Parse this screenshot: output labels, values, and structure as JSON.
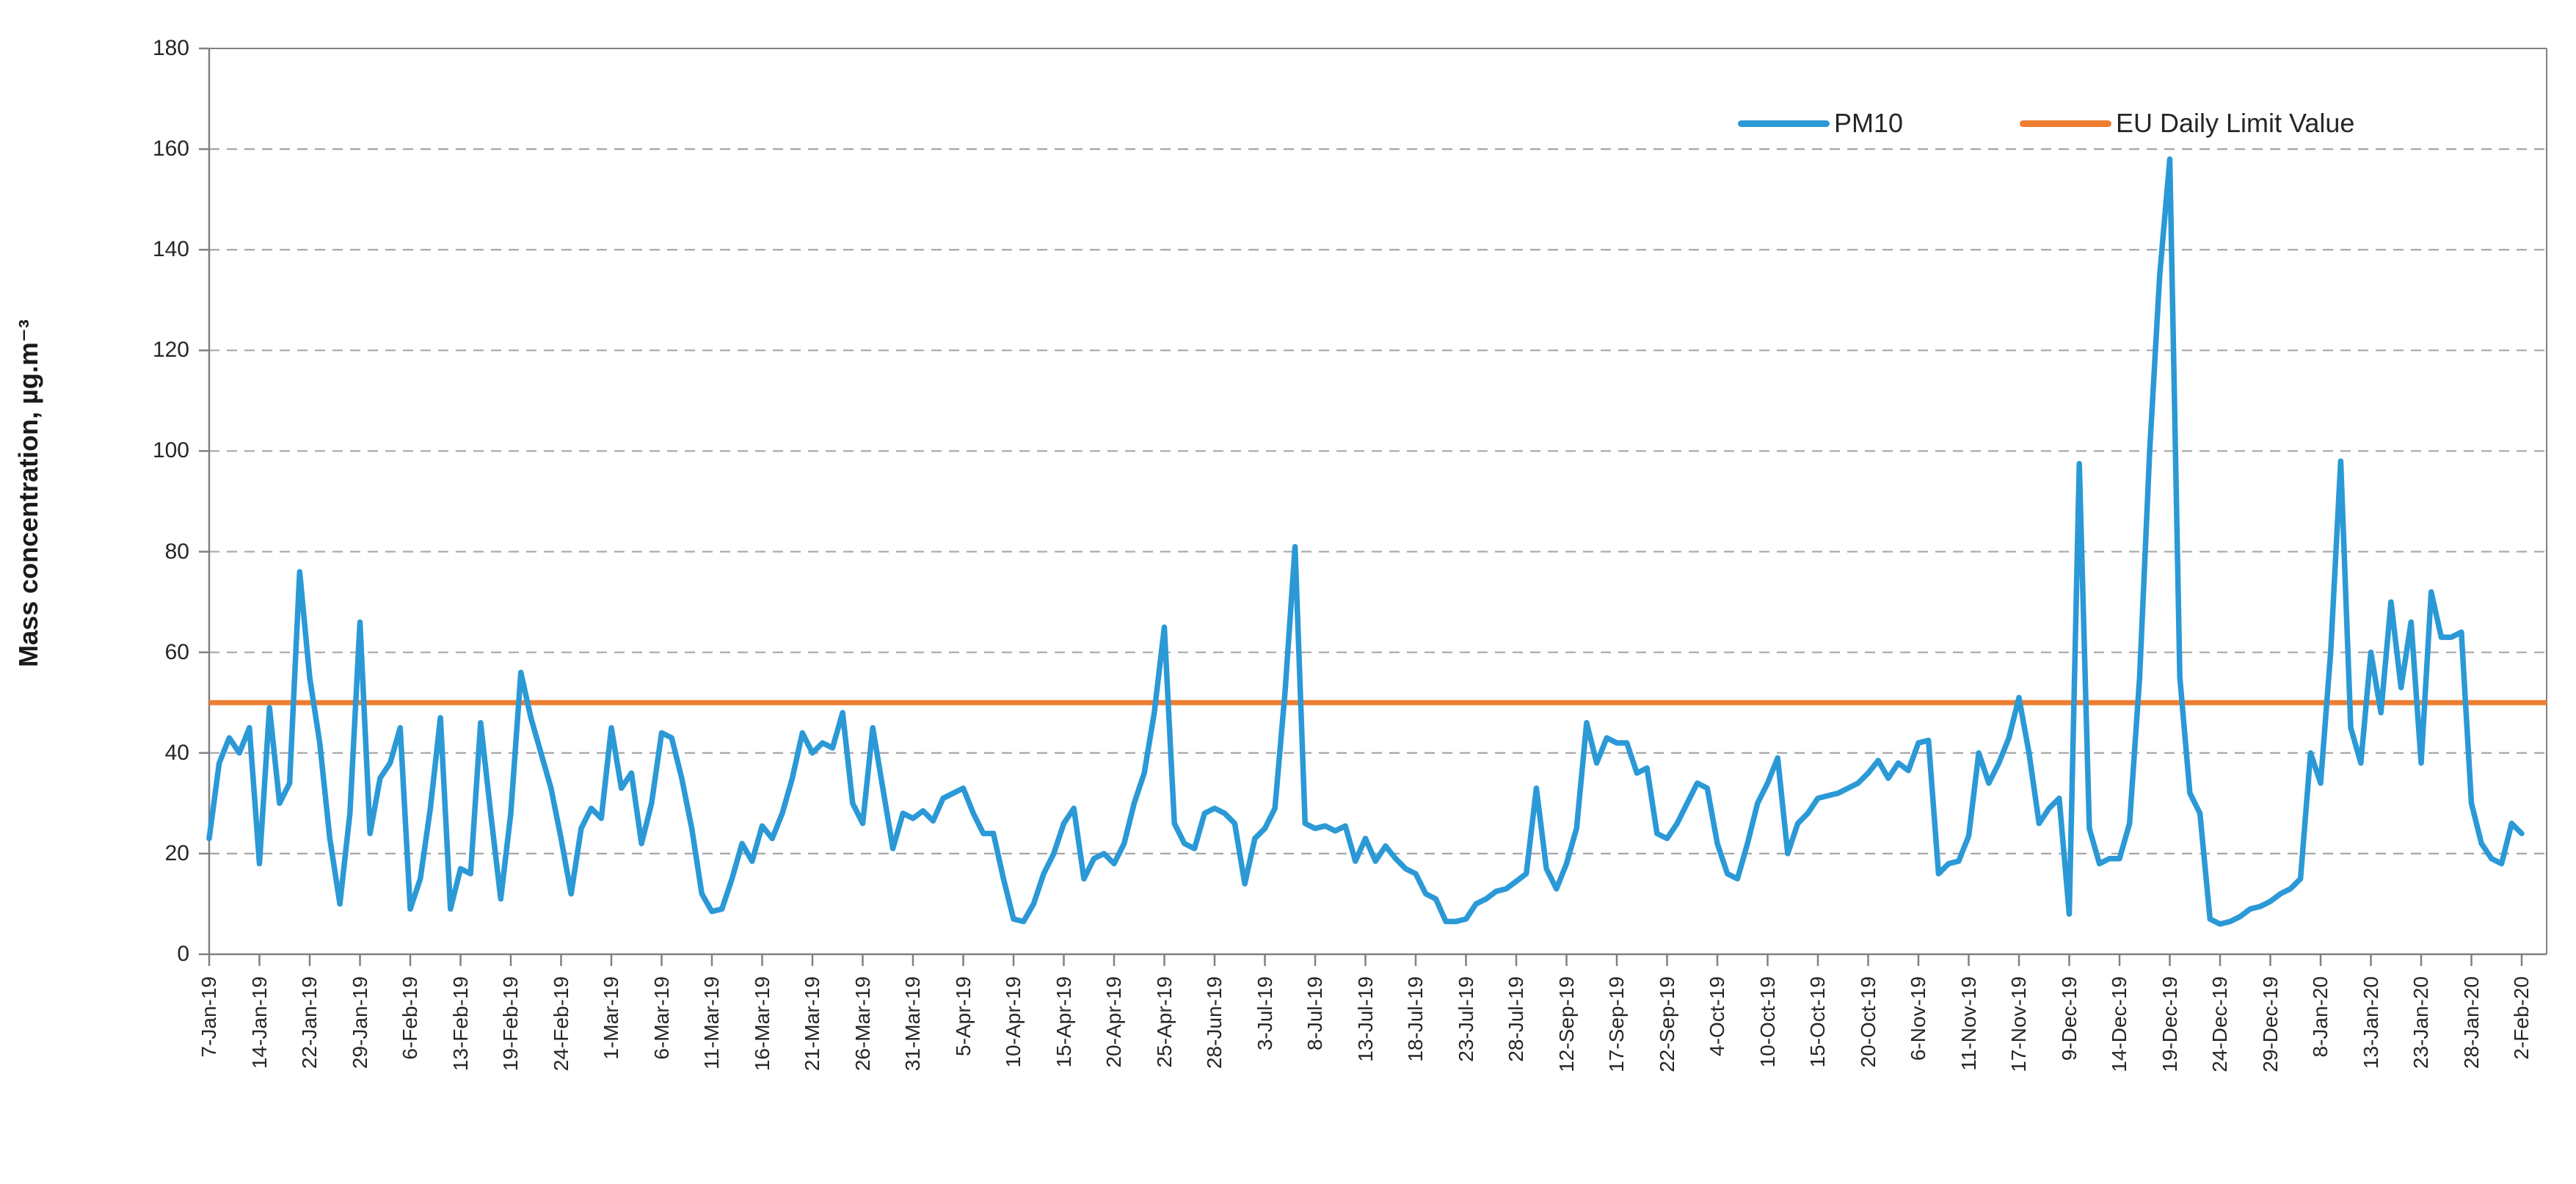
{
  "chart_data": {
    "type": "line",
    "title": "",
    "xlabel": "",
    "ylabel": "Mass concentration, µg.m⁻³",
    "ylim": [
      0,
      180
    ],
    "ytick_step": 20,
    "grid": "horizontal-dashed",
    "legend_position": "top-right-inside",
    "label_every_n_points": 5,
    "x_tick_labels": [
      "7-Jan-19",
      "14-Jan-19",
      "22-Jan-19",
      "29-Jan-19",
      "6-Feb-19",
      "13-Feb-19",
      "19-Feb-19",
      "24-Feb-19",
      "1-Mar-19",
      "6-Mar-19",
      "11-Mar-19",
      "16-Mar-19",
      "21-Mar-19",
      "26-Mar-19",
      "31-Mar-19",
      "5-Apr-19",
      "10-Apr-19",
      "15-Apr-19",
      "20-Apr-19",
      "25-Apr-19",
      "28-Jun-19",
      "3-Jul-19",
      "8-Jul-19",
      "13-Jul-19",
      "18-Jul-19",
      "23-Jul-19",
      "28-Jul-19",
      "12-Sep-19",
      "17-Sep-19",
      "22-Sep-19",
      "4-Oct-19",
      "10-Oct-19",
      "15-Oct-19",
      "20-Oct-19",
      "6-Nov-19",
      "11-Nov-19",
      "17-Nov-19",
      "9-Dec-19",
      "14-Dec-19",
      "19-Dec-19",
      "24-Dec-19",
      "29-Dec-19",
      "8-Jan-20",
      "13-Jan-20",
      "23-Jan-20",
      "28-Jan-20",
      "2-Feb-20"
    ],
    "series": [
      {
        "name": "PM10",
        "color": "#2B99D6",
        "values": [
          23,
          38,
          43,
          40,
          45,
          18,
          49,
          30,
          34,
          76,
          55,
          42,
          23,
          10,
          28,
          66,
          24,
          35,
          38,
          45,
          9,
          15,
          29,
          47,
          9,
          17,
          16,
          46,
          28,
          11,
          28,
          56,
          47,
          40,
          33,
          23,
          12,
          25,
          29,
          27,
          45,
          33,
          36,
          22,
          30,
          44,
          43,
          35,
          25,
          12,
          8.5,
          9,
          15,
          22,
          18.5,
          25.5,
          23,
          28,
          35,
          44,
          40,
          42,
          41,
          48,
          30,
          26,
          45,
          33,
          21,
          28,
          27,
          28.5,
          26.5,
          31,
          32,
          33,
          28,
          24,
          24,
          15,
          7,
          6.5,
          10,
          16,
          20,
          26,
          29,
          15,
          19,
          20,
          18,
          22,
          30,
          36,
          48,
          65,
          26,
          22,
          21,
          28,
          29,
          28,
          26,
          14,
          23,
          25,
          29,
          52,
          81,
          26,
          25,
          25.5,
          24.5,
          25.5,
          18.5,
          23,
          18.5,
          21.5,
          19,
          17,
          16,
          12,
          11,
          6.5,
          6.5,
          7,
          10,
          11,
          12.5,
          13,
          14.5,
          16,
          33,
          17,
          13,
          18,
          25,
          46,
          38,
          43,
          42,
          42,
          36,
          37,
          24,
          23,
          26,
          30,
          34,
          33,
          22,
          16,
          15,
          22,
          30,
          34,
          39,
          20,
          26,
          28,
          31,
          31.5,
          32,
          33,
          34,
          36,
          38.5,
          35,
          38,
          36.5,
          42,
          42.5,
          16,
          18,
          18.5,
          23.5,
          40,
          34,
          38,
          43,
          51,
          40,
          26,
          29,
          31,
          8,
          97.5,
          25,
          18,
          19,
          19,
          26,
          55,
          100,
          135,
          158,
          55,
          32,
          28,
          7,
          6,
          6.5,
          7.5,
          9,
          9.5,
          10.5,
          12,
          13,
          15,
          40,
          34,
          60,
          98,
          45,
          38,
          60,
          48,
          70,
          53,
          66,
          38,
          72,
          63,
          63,
          64,
          30,
          22,
          19,
          18,
          26,
          24
        ]
      },
      {
        "name": "EU Daily Limit Value",
        "color": "#ED7D31",
        "constant": 50
      }
    ]
  },
  "legend": {
    "pm10_label": "PM10",
    "limit_label": "EU Daily Limit Value"
  },
  "axes": {
    "y_title": "Mass concentration, µg.m⁻³"
  },
  "colors": {
    "pm10": "#2B99D6",
    "limit": "#ED7D31",
    "grid": "#A6A6A6",
    "axis": "#808080",
    "text": "#262626"
  }
}
